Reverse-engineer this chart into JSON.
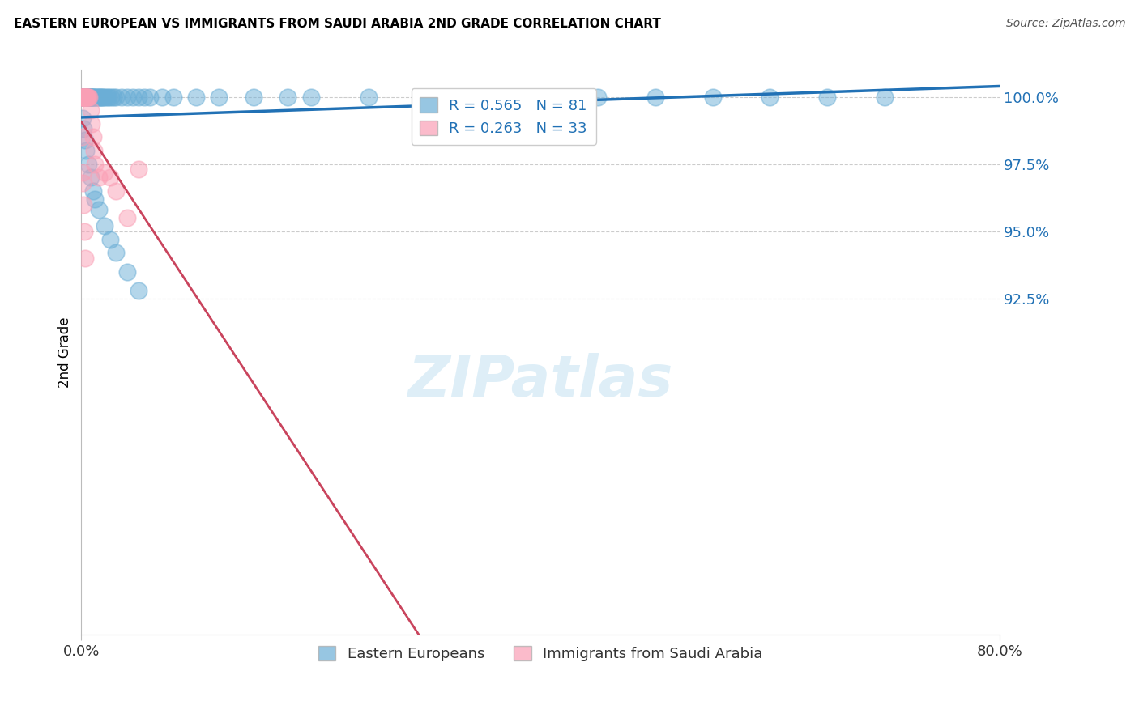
{
  "title": "EASTERN EUROPEAN VS IMMIGRANTS FROM SAUDI ARABIA 2ND GRADE CORRELATION CHART",
  "source": "Source: ZipAtlas.com",
  "ylabel": "2nd Grade",
  "legend_blue": "R = 0.565   N = 81",
  "legend_pink": "R = 0.263   N = 33",
  "legend_label_blue": "Eastern Europeans",
  "legend_label_pink": "Immigrants from Saudi Arabia",
  "blue_color": "#6baed6",
  "pink_color": "#fa9fb5",
  "blue_line_color": "#2171b5",
  "pink_line_color": "#c9445d",
  "xlim": [
    0.0,
    80.0
  ],
  "ylim": [
    80.0,
    101.0
  ],
  "y_ticks": [
    92.5,
    95.0,
    97.5,
    100.0
  ],
  "background_color": "#ffffff",
  "grid_color": "#cccccc",
  "blue_x": [
    0.05,
    0.08,
    0.1,
    0.12,
    0.15,
    0.18,
    0.2,
    0.22,
    0.25,
    0.28,
    0.3,
    0.32,
    0.35,
    0.38,
    0.4,
    0.42,
    0.45,
    0.48,
    0.5,
    0.55,
    0.6,
    0.65,
    0.7,
    0.75,
    0.8,
    0.85,
    0.9,
    0.95,
    1.0,
    1.1,
    1.2,
    1.3,
    1.4,
    1.5,
    1.6,
    1.7,
    1.8,
    1.9,
    2.0,
    2.2,
    2.4,
    2.6,
    2.8,
    3.0,
    3.5,
    4.0,
    4.5,
    5.0,
    5.5,
    6.0,
    7.0,
    8.0,
    10.0,
    12.0,
    15.0,
    18.0,
    20.0,
    25.0,
    30.0,
    35.0,
    40.0,
    45.0,
    50.0,
    55.0,
    60.0,
    65.0,
    70.0,
    0.1,
    0.2,
    0.3,
    0.4,
    0.6,
    0.8,
    1.0,
    1.2,
    1.5,
    2.0,
    2.5,
    3.0,
    4.0,
    5.0
  ],
  "blue_y": [
    100.0,
    100.0,
    100.0,
    100.0,
    100.0,
    100.0,
    100.0,
    100.0,
    100.0,
    100.0,
    100.0,
    100.0,
    100.0,
    100.0,
    100.0,
    100.0,
    100.0,
    100.0,
    100.0,
    100.0,
    100.0,
    100.0,
    100.0,
    100.0,
    100.0,
    100.0,
    100.0,
    100.0,
    100.0,
    100.0,
    100.0,
    100.0,
    100.0,
    100.0,
    100.0,
    100.0,
    100.0,
    100.0,
    100.0,
    100.0,
    100.0,
    100.0,
    100.0,
    100.0,
    100.0,
    100.0,
    100.0,
    100.0,
    100.0,
    100.0,
    100.0,
    100.0,
    100.0,
    100.0,
    100.0,
    100.0,
    100.0,
    100.0,
    100.0,
    100.0,
    100.0,
    100.0,
    100.0,
    100.0,
    100.0,
    100.0,
    100.0,
    99.2,
    98.8,
    98.4,
    98.0,
    97.5,
    97.0,
    96.5,
    96.2,
    95.8,
    95.2,
    94.7,
    94.2,
    93.5,
    92.8
  ],
  "pink_x": [
    0.05,
    0.08,
    0.1,
    0.12,
    0.15,
    0.18,
    0.2,
    0.25,
    0.3,
    0.35,
    0.4,
    0.45,
    0.5,
    0.55,
    0.6,
    0.7,
    0.8,
    0.9,
    1.0,
    1.1,
    1.2,
    1.5,
    2.0,
    2.5,
    3.0,
    4.0,
    5.0,
    0.08,
    0.12,
    0.15,
    0.2,
    0.25,
    0.3
  ],
  "pink_y": [
    100.0,
    100.0,
    100.0,
    100.0,
    100.0,
    100.0,
    100.0,
    100.0,
    100.0,
    100.0,
    100.0,
    100.0,
    100.0,
    100.0,
    100.0,
    100.0,
    99.5,
    99.0,
    98.5,
    98.0,
    97.5,
    97.0,
    97.2,
    97.0,
    96.5,
    95.5,
    97.3,
    98.5,
    97.2,
    96.8,
    96.0,
    95.0,
    94.0
  ]
}
